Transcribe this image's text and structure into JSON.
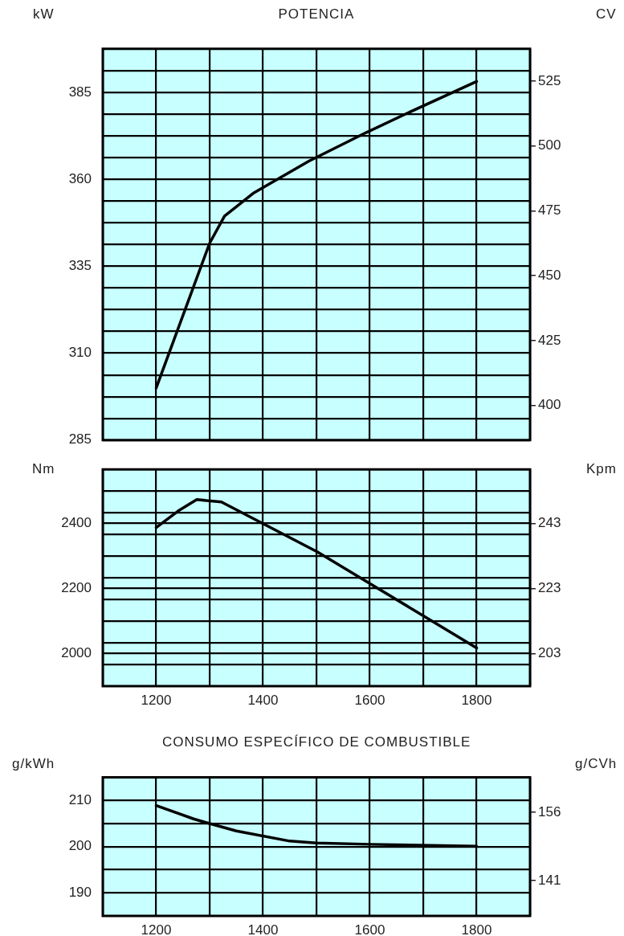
{
  "chart_data": [
    {
      "type": "line",
      "title": "POTENCIA",
      "ylabel": "kW",
      "y2label": "CV",
      "xlim": [
        1100,
        1900
      ],
      "xticks": [
        {
          "value": 1100,
          "label": null
        },
        1200,
        {
          "value": 1300,
          "label": null
        },
        1400,
        {
          "value": 1500,
          "label": null
        },
        1600,
        {
          "value": 1700,
          "label": null
        },
        1800,
        {
          "value": 1900,
          "label": null
        }
      ],
      "ylim": [
        285,
        397.5
      ],
      "yticks": [
        285,
        {
          "value": 291.25,
          "label": null
        },
        {
          "value": 297.5,
          "label": null
        },
        {
          "value": 303.75,
          "label": null
        },
        310,
        {
          "value": 316.25,
          "label": null
        },
        {
          "value": 322.5,
          "label": null
        },
        {
          "value": 328.75,
          "label": null
        },
        335,
        {
          "value": 341.25,
          "label": null
        },
        {
          "value": 347.5,
          "label": null
        },
        {
          "value": 353.75,
          "label": null
        },
        360,
        {
          "value": 366.25,
          "label": null
        },
        {
          "value": 372.5,
          "label": null
        },
        {
          "value": 378.75,
          "label": null
        },
        385,
        {
          "value": 391.25,
          "label": null
        }
      ],
      "y2lim": [
        386.6,
        537.5
      ],
      "y2ticks": [
        400,
        425,
        450,
        475,
        500,
        525
      ],
      "grid": true,
      "tick_labels": "y",
      "marker": "none",
      "series": [
        {
          "color": "#000000",
          "x": [
            1200,
            1300,
            1328,
            1383,
            1486,
            1593,
            1669,
            1800
          ],
          "values": [
            300,
            341.6,
            349.4,
            356.1,
            365.2,
            373.4,
            378.9,
            388.1
          ]
        }
      ]
    },
    {
      "type": "line",
      "ylabel": "Nm",
      "y2label": "Kpm",
      "xlim": [
        1100,
        1900
      ],
      "xticks": [
        {
          "value": 1100,
          "label": null
        },
        1200,
        {
          "value": 1300,
          "label": null
        },
        1400,
        {
          "value": 1500,
          "label": null
        },
        1600,
        {
          "value": 1700,
          "label": null
        },
        1800,
        {
          "value": 1900,
          "label": null
        }
      ],
      "ylim": [
        1900,
        2566
      ],
      "yticks": [
        {
          "value": 1966.6,
          "label": null
        },
        2000,
        {
          "value": 2033.2,
          "label": null
        },
        {
          "value": 2099.8,
          "label": null
        },
        {
          "value": 2166.4,
          "label": null
        },
        2200,
        {
          "value": 2233,
          "label": null
        },
        {
          "value": 2299.6,
          "label": null
        },
        {
          "value": 2366.2,
          "label": null
        },
        2400,
        {
          "value": 2432.8,
          "label": null
        },
        {
          "value": 2499.4,
          "label": null
        }
      ],
      "y2lim": [
        193.1,
        259.6
      ],
      "y2ticks": [
        203,
        223,
        243
      ],
      "grid": true,
      "marker": "none",
      "series": [
        {
          "color": "#000000",
          "x": [
            1200,
            1241,
            1276,
            1322,
            1502,
            1593,
            1800
          ],
          "values": [
            2387,
            2438,
            2473,
            2466,
            2312,
            2222,
            2017
          ]
        }
      ]
    },
    {
      "type": "line",
      "title": "CONSUMO ESPECÍFICO  DE COMBUSTIBLE",
      "ylabel": "g/kWh",
      "y2label": "g/CVh",
      "xlim": [
        1100,
        1900
      ],
      "xticks": [
        {
          "value": 1100,
          "label": null
        },
        1200,
        {
          "value": 1300,
          "label": null
        },
        1400,
        {
          "value": 1500,
          "label": null
        },
        1600,
        {
          "value": 1700,
          "label": null
        },
        1800,
        {
          "value": 1900,
          "label": null
        }
      ],
      "ylim": [
        185,
        215
      ],
      "yticks": [
        190,
        {
          "value": 195,
          "label": null
        },
        200,
        {
          "value": 205,
          "label": null
        },
        210
      ],
      "y2lim": [
        133.2,
        163.7
      ],
      "y2ticks": [
        141,
        156
      ],
      "grid": true,
      "marker": "none",
      "series": [
        {
          "color": "#000000",
          "x": [
            1200,
            1270,
            1300,
            1350,
            1450,
            1500,
            1600,
            1800
          ],
          "values": [
            208.9,
            206,
            205,
            203.4,
            201.2,
            200.8,
            200.5,
            200.1
          ]
        }
      ]
    }
  ]
}
